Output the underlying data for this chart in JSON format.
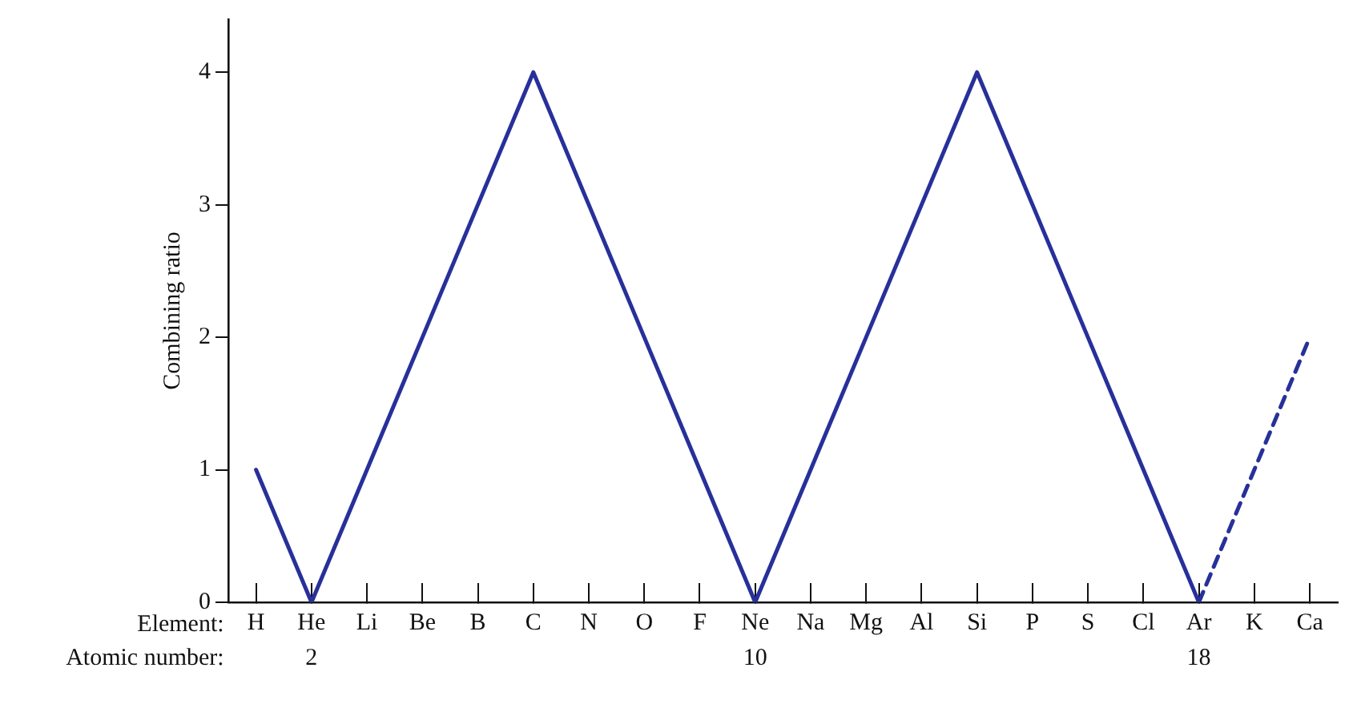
{
  "chart_data": {
    "type": "line",
    "ylabel": "Combining ratio",
    "categories": [
      "H",
      "He",
      "Li",
      "Be",
      "B",
      "C",
      "N",
      "O",
      "F",
      "Ne",
      "Na",
      "Mg",
      "Al",
      "Si",
      "P",
      "S",
      "Cl",
      "Ar",
      "K",
      "Ca"
    ],
    "series": [
      {
        "color": "#27309a",
        "line_style": "solid",
        "values": [
          1,
          0,
          1,
          2,
          3,
          4,
          3,
          2,
          1,
          0,
          1,
          2,
          3,
          4,
          3,
          2,
          1,
          0,
          null,
          null
        ]
      },
      {
        "color": "#27309a",
        "line_style": "dashed",
        "values": [
          null,
          null,
          null,
          null,
          null,
          null,
          null,
          null,
          null,
          null,
          null,
          null,
          null,
          null,
          null,
          null,
          null,
          0,
          1,
          2
        ]
      }
    ],
    "ylim": [
      0,
      4.4
    ],
    "yticks": [
      0,
      1,
      2,
      3,
      4
    ],
    "grid": false,
    "legend": false,
    "marker": "none",
    "annotations": [
      "Element:",
      "Atomic number:",
      "2",
      "10",
      "18"
    ]
  }
}
